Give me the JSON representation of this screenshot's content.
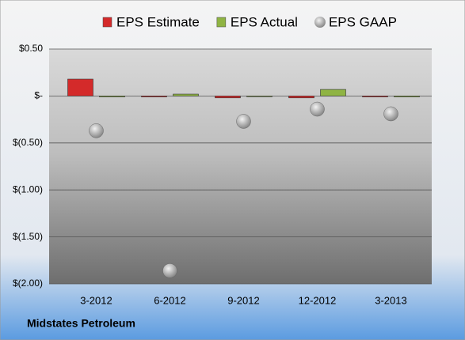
{
  "chart_data": {
    "type": "bar",
    "caption": "Midstates Petroleum",
    "categories": [
      "3-2012",
      "6-2012",
      "9-2012",
      "12-2012",
      "3-2013"
    ],
    "series": [
      {
        "name": "EPS Estimate",
        "color": "#d42a2a",
        "type": "bar",
        "values": [
          0.18,
          -0.01,
          -0.02,
          -0.02,
          -0.01
        ]
      },
      {
        "name": "EPS Actual",
        "color": "#8fb443",
        "type": "bar",
        "values": [
          -0.01,
          0.02,
          0,
          0.07,
          -0.01
        ]
      },
      {
        "name": "EPS GAAP",
        "color": "#a6a6a6",
        "type": "scatter",
        "values": [
          -0.37,
          -1.86,
          -0.27,
          -0.14,
          -0.19
        ]
      }
    ],
    "ylim": [
      -2,
      0.5
    ],
    "yticks": [
      {
        "value": 0.5,
        "label": "$0.50"
      },
      {
        "value": 0,
        "label": "$-"
      },
      {
        "value": -0.5,
        "label": "$(0.50)"
      },
      {
        "value": -1,
        "label": "$(1.00)"
      },
      {
        "value": -1.5,
        "label": "$(1.50)"
      },
      {
        "value": -2,
        "label": "$(2.00)"
      }
    ],
    "grid": true,
    "legend": "top"
  }
}
